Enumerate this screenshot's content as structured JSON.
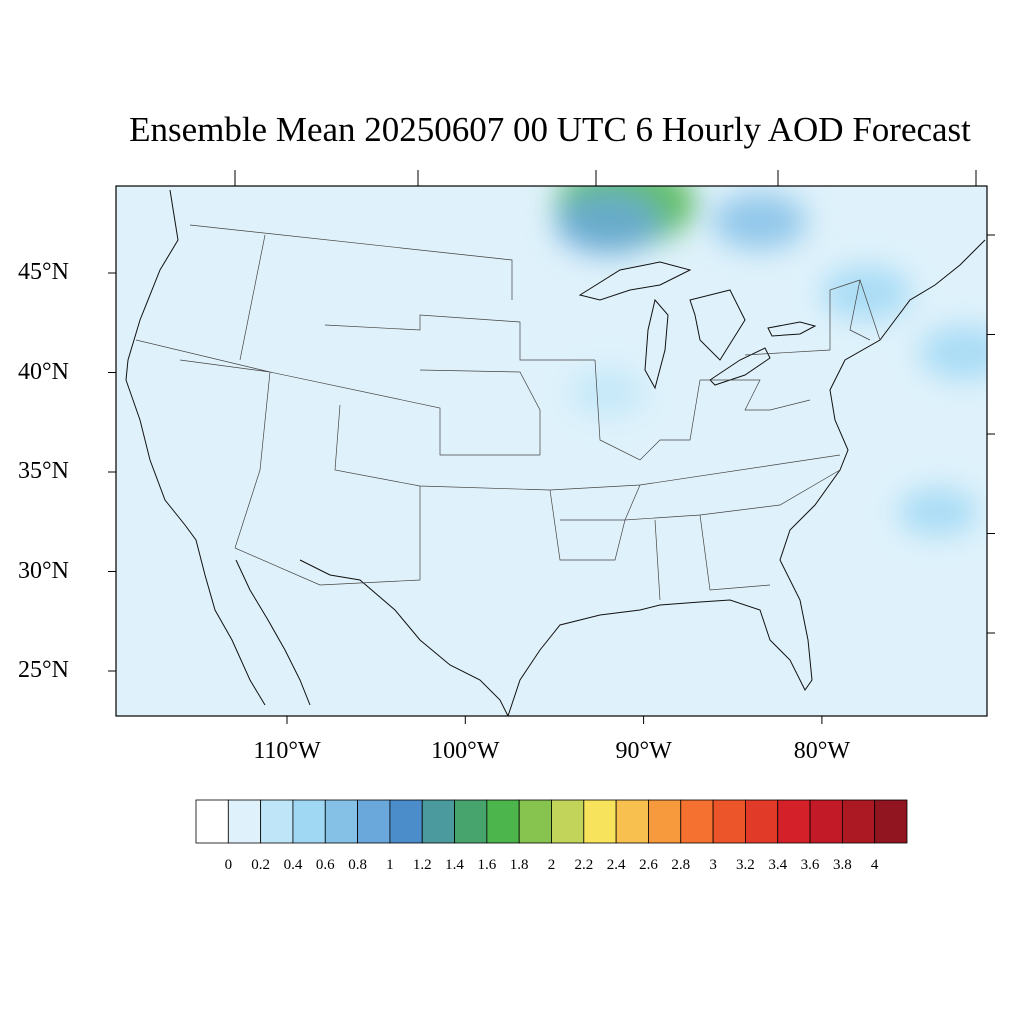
{
  "title": "Ensemble Mean 20250607 00 UTC 6 Hourly AOD Forecast",
  "map": {
    "lon_range": [
      -119,
      -70
    ],
    "lat_range": [
      22.5,
      49.3
    ],
    "lat_ticks": [
      {
        "value": 45,
        "label": "45°N"
      },
      {
        "value": 40,
        "label": "40°N"
      },
      {
        "value": 35,
        "label": "35°N"
      },
      {
        "value": 30,
        "label": "30°N"
      },
      {
        "value": 25,
        "label": "25°N"
      }
    ],
    "lon_ticks": [
      {
        "value": -110,
        "label": "110°W"
      },
      {
        "value": -100,
        "label": "100°W"
      },
      {
        "value": -90,
        "label": "90°W"
      },
      {
        "value": -80,
        "label": "80°W"
      }
    ],
    "background_color": "#dff2fb",
    "plumes": [
      {
        "lon": -91.0,
        "lat": 48.5,
        "aod": 1.6
      },
      {
        "lon": -92.0,
        "lat": 47.5,
        "aod": 0.9
      },
      {
        "lon": -83.5,
        "lat": 47.6,
        "aod": 0.7
      },
      {
        "lon": -77.5,
        "lat": 44.0,
        "aod": 0.6
      },
      {
        "lon": -72.0,
        "lat": 41.0,
        "aod": 0.6
      },
      {
        "lon": -73.5,
        "lat": 33.0,
        "aod": 0.4
      },
      {
        "lon": -92.0,
        "lat": 39.0,
        "aod": 0.3
      }
    ]
  },
  "colorbar": {
    "colors": [
      "#ffffff",
      "#dff2fb",
      "#bfe6f8",
      "#a0d8f4",
      "#85c1e7",
      "#6aa8dc",
      "#4a8dca",
      "#4a9a9e",
      "#48a46d",
      "#4cb54c",
      "#86c44f",
      "#c2d55a",
      "#f8e45c",
      "#f7c04f",
      "#f79a3e",
      "#f5712f",
      "#ec552a",
      "#e23a28",
      "#d42028",
      "#c21a26",
      "#ad1923",
      "#901520"
    ],
    "labels": [
      "0",
      "0.2",
      "0.4",
      "0.6",
      "0.8",
      "1",
      "1.2",
      "1.4",
      "1.6",
      "1.8",
      "2",
      "2.2",
      "2.4",
      "2.6",
      "2.8",
      "3",
      "3.2",
      "3.4",
      "3.6",
      "3.8",
      "4"
    ]
  }
}
